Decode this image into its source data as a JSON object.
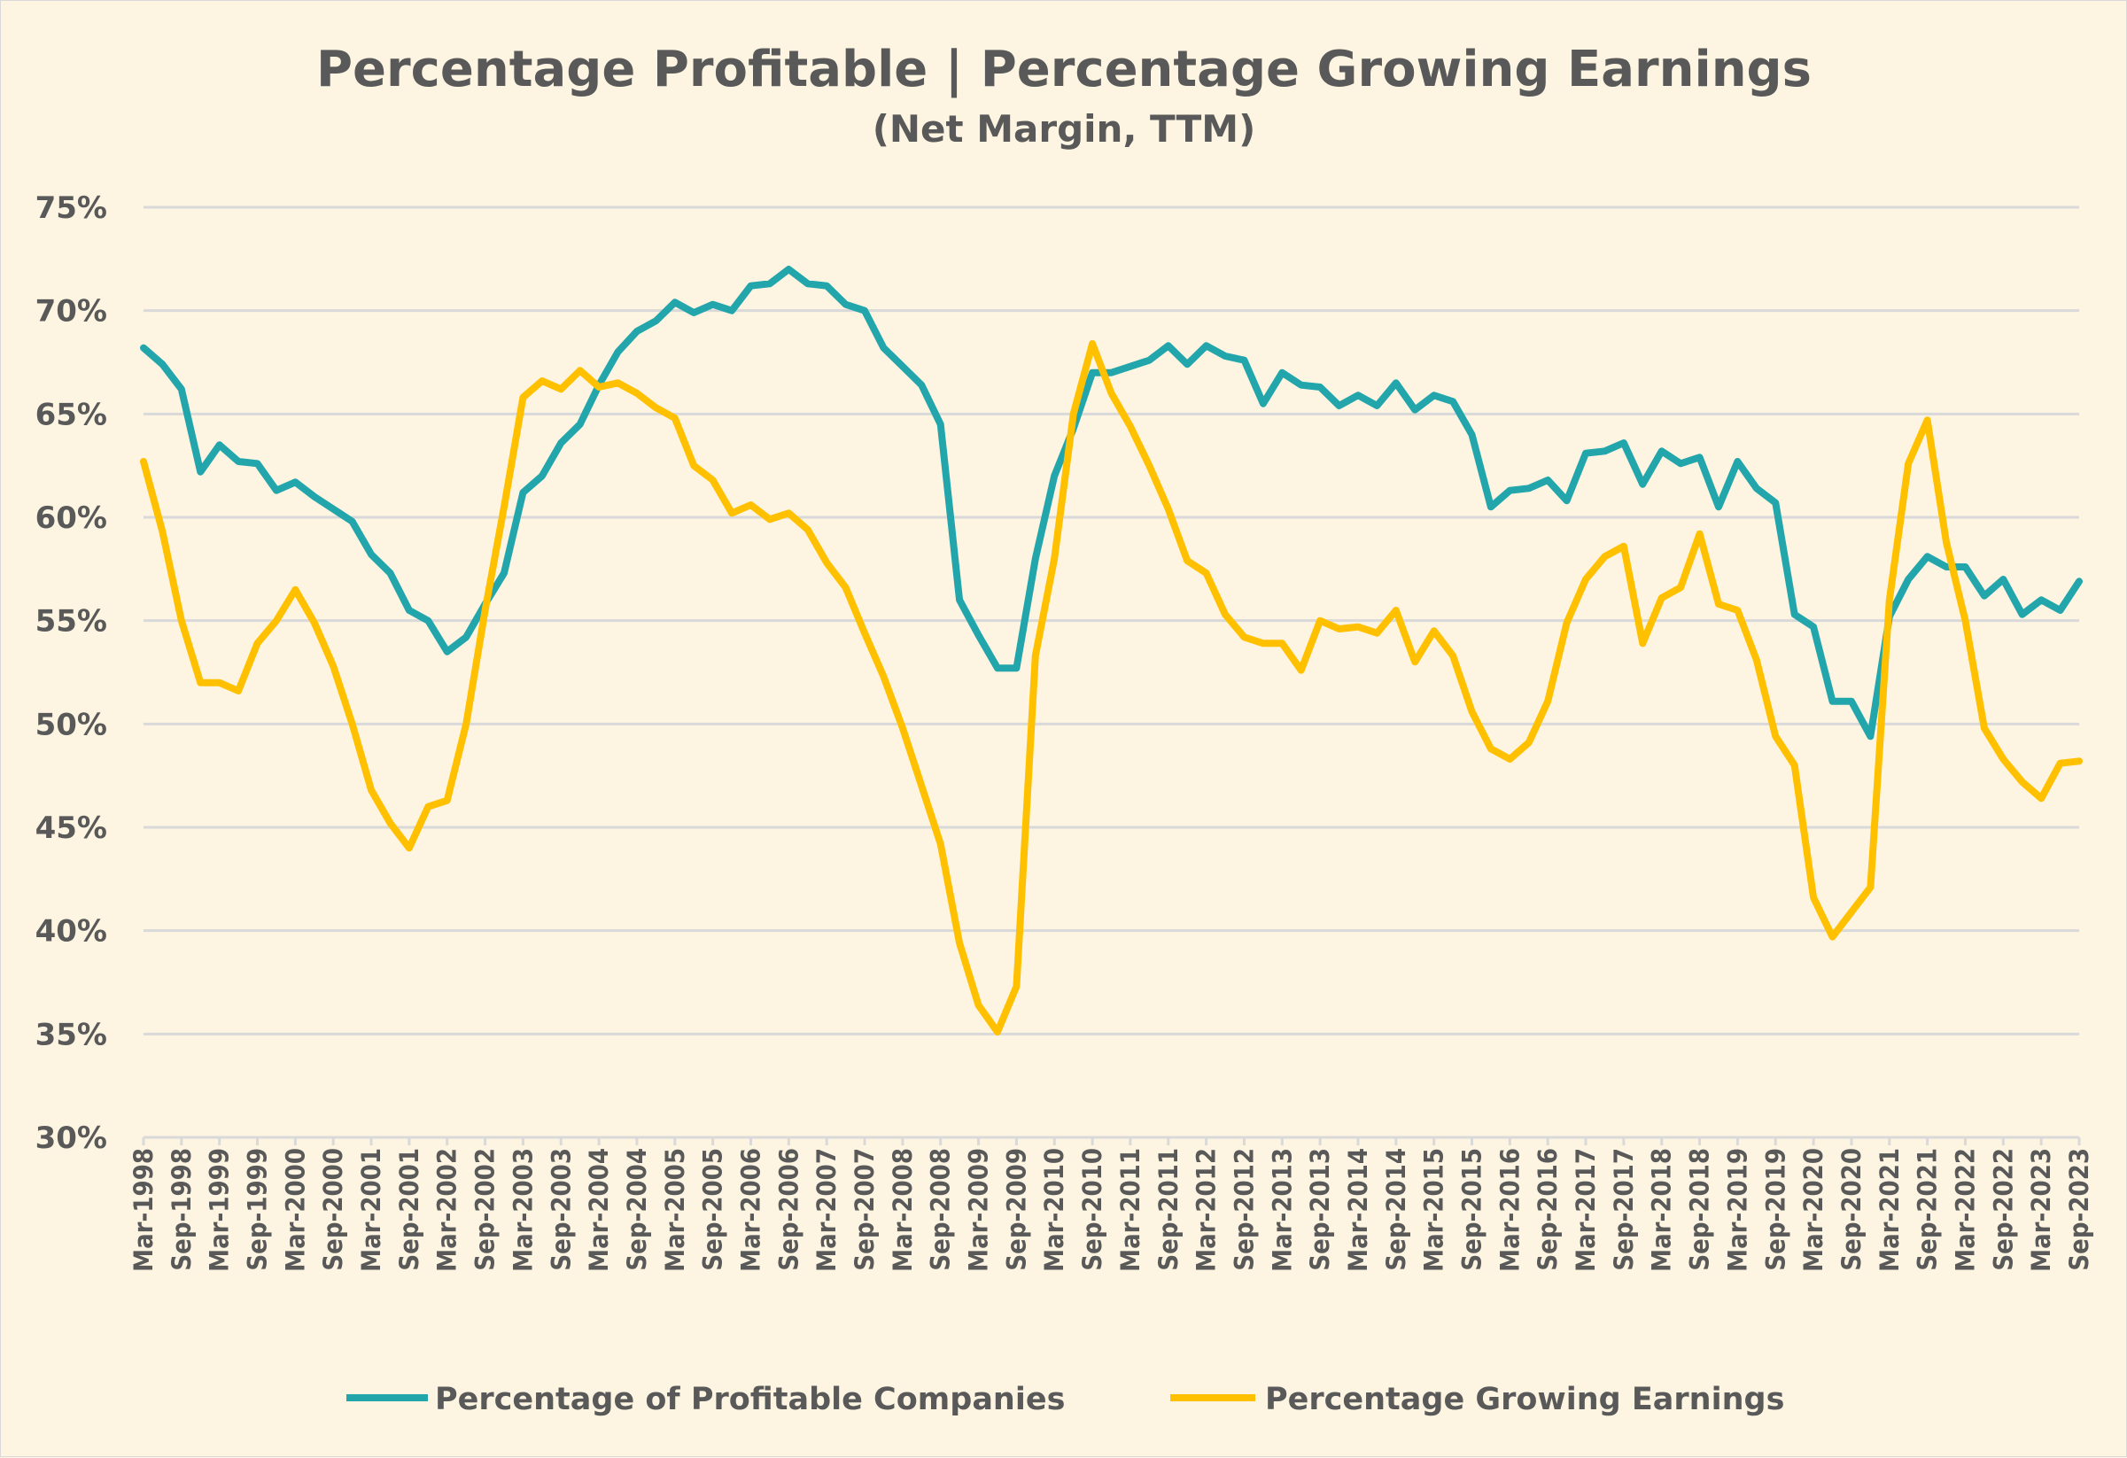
{
  "chart_data": {
    "type": "line",
    "title": "Percentage Profitable | Percentage Growing Earnings",
    "subtitle": "(Net Margin, TTM)",
    "xlabel": "",
    "ylabel": "",
    "ylim": [
      30,
      75
    ],
    "y_ticks": [
      "30%",
      "35%",
      "40%",
      "45%",
      "50%",
      "55%",
      "60%",
      "65%",
      "70%",
      "75%"
    ],
    "y_tick_values": [
      30,
      35,
      40,
      45,
      50,
      55,
      60,
      65,
      70,
      75
    ],
    "grid": "horizontal",
    "legend_placement": "bottom",
    "x_frequency": "quarterly",
    "x_start": "Mar-1998",
    "x_end": "Sep-2023",
    "x_tick_labels": [
      "Mar-1998",
      "Sep-1998",
      "Mar-1999",
      "Sep-1999",
      "Mar-2000",
      "Sep-2000",
      "Mar-2001",
      "Sep-2001",
      "Mar-2002",
      "Sep-2002",
      "Mar-2003",
      "Sep-2003",
      "Mar-2004",
      "Sep-2004",
      "Mar-2005",
      "Sep-2005",
      "Mar-2006",
      "Sep-2006",
      "Mar-2007",
      "Sep-2007",
      "Mar-2008",
      "Sep-2008",
      "Mar-2009",
      "Sep-2009",
      "Mar-2010",
      "Sep-2010",
      "Mar-2011",
      "Sep-2011",
      "Mar-2012",
      "Sep-2012",
      "Mar-2013",
      "Sep-2013",
      "Mar-2014",
      "Sep-2014",
      "Mar-2015",
      "Sep-2015",
      "Mar-2016",
      "Sep-2016",
      "Mar-2017",
      "Sep-2017",
      "Mar-2018",
      "Sep-2018",
      "Mar-2019",
      "Sep-2019",
      "Mar-2020",
      "Sep-2020",
      "Mar-2021",
      "Sep-2021",
      "Mar-2022",
      "Sep-2022",
      "Mar-2023",
      "Sep-2023"
    ],
    "series": [
      {
        "name": "Percentage of Profitable Companies",
        "color": "#22a6ac",
        "values": [
          68.2,
          67.4,
          66.2,
          62.2,
          63.5,
          62.7,
          62.6,
          61.3,
          61.7,
          61.0,
          60.4,
          59.8,
          58.2,
          57.3,
          55.5,
          55.0,
          53.5,
          54.2,
          55.8,
          57.3,
          61.2,
          62.0,
          63.6,
          64.5,
          66.4,
          68.0,
          69.0,
          69.5,
          70.4,
          69.9,
          70.3,
          70.0,
          71.2,
          71.3,
          72.0,
          71.3,
          71.2,
          70.3,
          70.0,
          68.2,
          67.3,
          66.4,
          64.5,
          56.0,
          54.3,
          52.7,
          52.7,
          58.0,
          62.0,
          64.3,
          67.0,
          67.0,
          67.3,
          67.6,
          68.3,
          67.4,
          68.3,
          67.8,
          67.6,
          65.5,
          67.0,
          66.4,
          66.3,
          65.4,
          65.9,
          65.4,
          66.5,
          65.2,
          65.9,
          65.6,
          64.0,
          60.5,
          61.3,
          61.4,
          61.8,
          60.8,
          63.1,
          63.2,
          63.6,
          61.6,
          63.2,
          62.6,
          62.9,
          60.5,
          62.7,
          61.4,
          60.7,
          55.3,
          54.7,
          51.1,
          51.1,
          49.4,
          55.2,
          57.0,
          58.1,
          57.6,
          57.6,
          56.2,
          57.0,
          55.3,
          56.0,
          55.5,
          56.9
        ]
      },
      {
        "name": "Percentage Growing Earnings",
        "color": "#ffc000",
        "values": [
          62.7,
          59.3,
          55.0,
          52.0,
          52.0,
          51.6,
          53.9,
          55.0,
          56.5,
          54.9,
          52.8,
          50.0,
          46.8,
          45.2,
          44.0,
          46.0,
          46.3,
          50.0,
          55.5,
          60.5,
          65.8,
          66.6,
          66.2,
          67.1,
          66.3,
          66.5,
          66.0,
          65.3,
          64.8,
          62.5,
          61.8,
          60.2,
          60.6,
          59.9,
          60.2,
          59.4,
          57.8,
          56.6,
          54.4,
          52.3,
          49.8,
          47.0,
          44.2,
          39.4,
          36.4,
          35.1,
          37.3,
          53.3,
          58.0,
          65.0,
          68.4,
          66.0,
          64.4,
          62.5,
          60.4,
          57.9,
          57.3,
          55.3,
          54.2,
          53.9,
          53.9,
          52.6,
          55.0,
          54.6,
          54.7,
          54.4,
          55.5,
          53.0,
          54.5,
          53.3,
          50.6,
          48.8,
          48.3,
          49.1,
          51.1,
          54.9,
          57.0,
          58.1,
          58.6,
          53.9,
          56.1,
          56.6,
          59.2,
          55.8,
          55.5,
          53.1,
          49.4,
          48.0,
          41.6,
          39.7,
          40.9,
          42.1,
          56.0,
          62.6,
          64.7,
          58.8,
          55.0,
          49.8,
          48.3,
          47.2,
          46.4,
          48.1,
          48.2
        ]
      }
    ],
    "colors": {
      "background": "#fdf5e1",
      "grid": "#d9d9d9",
      "text": "#595959"
    }
  }
}
